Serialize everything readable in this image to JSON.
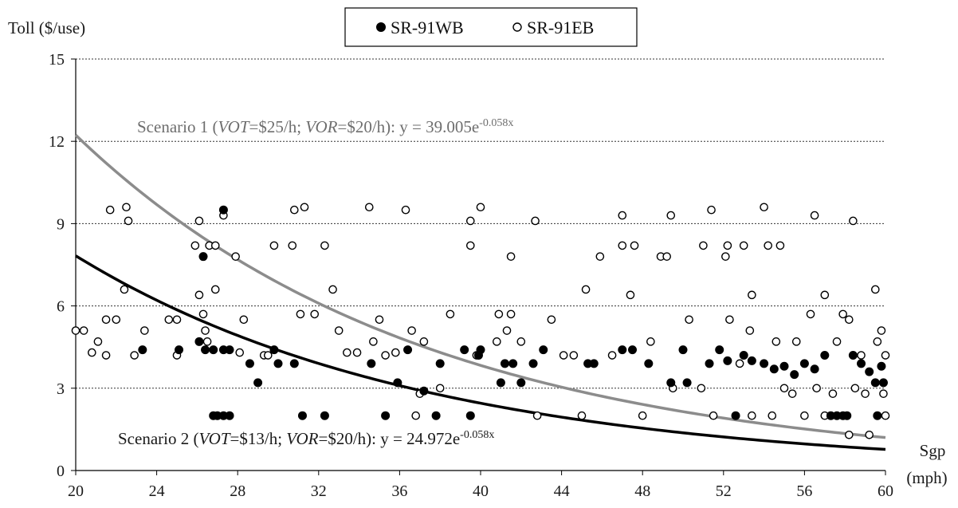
{
  "chart_data": {
    "type": "scatter",
    "xlabel": "Sgp",
    "xlabel_unit": "(mph)",
    "ylabel": "Toll ($/use)",
    "xlim": [
      20,
      60
    ],
    "ylim": [
      0,
      15
    ],
    "x_ticks": [
      20,
      24,
      28,
      32,
      36,
      40,
      44,
      48,
      52,
      56,
      60
    ],
    "y_ticks": [
      0,
      3,
      6,
      9,
      12,
      15
    ],
    "grid": "horizontal dotted",
    "legend_position": "top-center",
    "series": [
      {
        "name": "SR-91WB",
        "marker": "filled-circle",
        "points": [
          [
            23.3,
            4.4
          ],
          [
            25.1,
            4.4
          ],
          [
            26.1,
            4.7
          ],
          [
            26.4,
            4.4
          ],
          [
            26.8,
            4.4
          ],
          [
            27.3,
            4.4
          ],
          [
            27.6,
            4.4
          ],
          [
            26.8,
            2.0
          ],
          [
            27.0,
            2.0
          ],
          [
            27.3,
            2.0
          ],
          [
            27.6,
            2.0
          ],
          [
            26.3,
            7.8
          ],
          [
            27.3,
            9.5
          ],
          [
            28.6,
            3.9
          ],
          [
            29.0,
            3.2
          ],
          [
            29.8,
            4.4
          ],
          [
            30.0,
            3.9
          ],
          [
            30.8,
            3.9
          ],
          [
            31.2,
            2.0
          ],
          [
            32.3,
            2.0
          ],
          [
            34.6,
            3.9
          ],
          [
            35.3,
            2.0
          ],
          [
            35.9,
            3.2
          ],
          [
            36.4,
            4.4
          ],
          [
            37.2,
            2.9
          ],
          [
            37.8,
            2.0
          ],
          [
            38.0,
            3.9
          ],
          [
            39.2,
            4.4
          ],
          [
            39.5,
            2.0
          ],
          [
            39.9,
            4.2
          ],
          [
            40.0,
            4.4
          ],
          [
            41.0,
            3.2
          ],
          [
            41.2,
            3.9
          ],
          [
            41.6,
            3.9
          ],
          [
            42.0,
            3.2
          ],
          [
            42.6,
            3.9
          ],
          [
            43.1,
            4.4
          ],
          [
            45.3,
            3.9
          ],
          [
            45.6,
            3.9
          ],
          [
            47.0,
            4.4
          ],
          [
            47.5,
            4.4
          ],
          [
            48.3,
            3.9
          ],
          [
            49.4,
            3.2
          ],
          [
            50.0,
            4.4
          ],
          [
            50.2,
            3.2
          ],
          [
            51.3,
            3.9
          ],
          [
            51.8,
            4.4
          ],
          [
            52.2,
            4.0
          ],
          [
            52.6,
            2.0
          ],
          [
            53.0,
            4.2
          ],
          [
            53.4,
            4.0
          ],
          [
            54.0,
            3.9
          ],
          [
            54.5,
            3.7
          ],
          [
            55.0,
            3.8
          ],
          [
            55.5,
            3.5
          ],
          [
            56.0,
            3.9
          ],
          [
            56.5,
            3.7
          ],
          [
            57.0,
            4.2
          ],
          [
            57.3,
            2.0
          ],
          [
            57.6,
            2.0
          ],
          [
            57.9,
            2.0
          ],
          [
            58.1,
            2.0
          ],
          [
            58.4,
            4.2
          ],
          [
            58.8,
            3.9
          ],
          [
            59.2,
            3.6
          ],
          [
            59.5,
            3.2
          ],
          [
            59.8,
            3.8
          ],
          [
            59.9,
            3.2
          ],
          [
            59.6,
            2.0
          ]
        ]
      },
      {
        "name": "SR-91EB",
        "marker": "open-circle",
        "points": [
          [
            20.0,
            5.1
          ],
          [
            20.4,
            5.1
          ],
          [
            20.8,
            4.3
          ],
          [
            21.1,
            4.7
          ],
          [
            21.5,
            4.2
          ],
          [
            21.5,
            5.5
          ],
          [
            21.7,
            9.5
          ],
          [
            22.0,
            5.5
          ],
          [
            22.4,
            6.6
          ],
          [
            22.5,
            9.6
          ],
          [
            22.6,
            9.1
          ],
          [
            22.9,
            4.2
          ],
          [
            23.4,
            5.1
          ],
          [
            24.6,
            5.5
          ],
          [
            25.0,
            5.5
          ],
          [
            25.0,
            4.2
          ],
          [
            25.9,
            8.2
          ],
          [
            26.1,
            9.1
          ],
          [
            26.1,
            6.4
          ],
          [
            26.3,
            5.7
          ],
          [
            26.4,
            5.1
          ],
          [
            26.5,
            4.7
          ],
          [
            26.6,
            8.2
          ],
          [
            26.9,
            6.6
          ],
          [
            26.9,
            8.2
          ],
          [
            27.3,
            9.3
          ],
          [
            27.9,
            7.8
          ],
          [
            28.1,
            4.3
          ],
          [
            28.3,
            5.5
          ],
          [
            29.3,
            4.2
          ],
          [
            29.5,
            4.2
          ],
          [
            29.8,
            8.2
          ],
          [
            30.7,
            8.2
          ],
          [
            30.8,
            9.5
          ],
          [
            31.1,
            5.7
          ],
          [
            31.3,
            9.6
          ],
          [
            31.8,
            5.7
          ],
          [
            32.3,
            8.2
          ],
          [
            32.7,
            6.6
          ],
          [
            33.0,
            5.1
          ],
          [
            33.4,
            4.3
          ],
          [
            33.9,
            4.3
          ],
          [
            34.5,
            9.6
          ],
          [
            34.7,
            4.7
          ],
          [
            35.0,
            5.5
          ],
          [
            35.3,
            4.2
          ],
          [
            35.8,
            4.3
          ],
          [
            36.3,
            9.5
          ],
          [
            36.6,
            5.1
          ],
          [
            36.8,
            2.0
          ],
          [
            37.0,
            2.8
          ],
          [
            37.2,
            4.7
          ],
          [
            38.0,
            3.0
          ],
          [
            38.5,
            5.7
          ],
          [
            39.5,
            9.1
          ],
          [
            39.5,
            8.2
          ],
          [
            39.8,
            4.2
          ],
          [
            40.0,
            9.6
          ],
          [
            40.8,
            4.7
          ],
          [
            40.9,
            5.7
          ],
          [
            41.3,
            5.1
          ],
          [
            41.5,
            7.8
          ],
          [
            41.5,
            5.7
          ],
          [
            42.0,
            4.7
          ],
          [
            42.7,
            9.1
          ],
          [
            42.8,
            2.0
          ],
          [
            43.5,
            5.5
          ],
          [
            44.1,
            4.2
          ],
          [
            44.6,
            4.2
          ],
          [
            45.0,
            2.0
          ],
          [
            45.2,
            6.6
          ],
          [
            45.9,
            7.8
          ],
          [
            46.5,
            4.2
          ],
          [
            47.0,
            9.3
          ],
          [
            47.0,
            8.2
          ],
          [
            47.4,
            6.4
          ],
          [
            47.6,
            8.2
          ],
          [
            48.0,
            2.0
          ],
          [
            48.4,
            4.7
          ],
          [
            48.9,
            7.8
          ],
          [
            49.2,
            7.8
          ],
          [
            49.4,
            9.3
          ],
          [
            49.5,
            3.0
          ],
          [
            50.3,
            5.5
          ],
          [
            50.9,
            3.0
          ],
          [
            51.0,
            8.2
          ],
          [
            51.4,
            9.5
          ],
          [
            51.5,
            2.0
          ],
          [
            52.1,
            7.8
          ],
          [
            52.2,
            8.2
          ],
          [
            52.3,
            5.5
          ],
          [
            52.8,
            3.9
          ],
          [
            53.0,
            8.2
          ],
          [
            53.3,
            5.1
          ],
          [
            53.4,
            6.4
          ],
          [
            53.4,
            2.0
          ],
          [
            54.0,
            9.6
          ],
          [
            54.2,
            8.2
          ],
          [
            54.4,
            2.0
          ],
          [
            54.6,
            4.7
          ],
          [
            54.8,
            8.2
          ],
          [
            55.0,
            3.0
          ],
          [
            55.4,
            2.8
          ],
          [
            55.6,
            4.7
          ],
          [
            56.0,
            2.0
          ],
          [
            56.3,
            5.7
          ],
          [
            56.5,
            9.3
          ],
          [
            56.6,
            3.0
          ],
          [
            57.0,
            6.4
          ],
          [
            57.0,
            2.0
          ],
          [
            57.4,
            2.8
          ],
          [
            57.6,
            4.7
          ],
          [
            57.9,
            5.7
          ],
          [
            58.2,
            5.5
          ],
          [
            58.2,
            1.3
          ],
          [
            58.4,
            9.1
          ],
          [
            58.5,
            3.0
          ],
          [
            58.8,
            4.2
          ],
          [
            59.0,
            2.8
          ],
          [
            59.2,
            1.3
          ],
          [
            59.5,
            6.6
          ],
          [
            59.6,
            4.7
          ],
          [
            59.8,
            5.1
          ],
          [
            59.9,
            2.8
          ],
          [
            60.0,
            4.2
          ],
          [
            60.0,
            2.0
          ]
        ]
      }
    ],
    "curves": [
      {
        "id": "scenario1",
        "color": "#8c8c8c",
        "equation_a": 39.005,
        "equation_b": -0.058,
        "label_prefix": "Scenario 1 (",
        "label_var1": "VOT",
        "label_val1": "=$25/h; ",
        "label_var2": "VOR",
        "label_val2": "=$20/h):  y = 39.005e",
        "label_exp": "-0.058x"
      },
      {
        "id": "scenario2",
        "color": "#000000",
        "equation_a": 24.972,
        "equation_b": -0.058,
        "label_prefix": "Scenario 2 (",
        "label_var1": "VOT",
        "label_val1": "=$13/h; ",
        "label_var2": "VOR",
        "label_val2": "=$20/h): y = 24.972e",
        "label_exp": "-0.058x"
      }
    ]
  }
}
